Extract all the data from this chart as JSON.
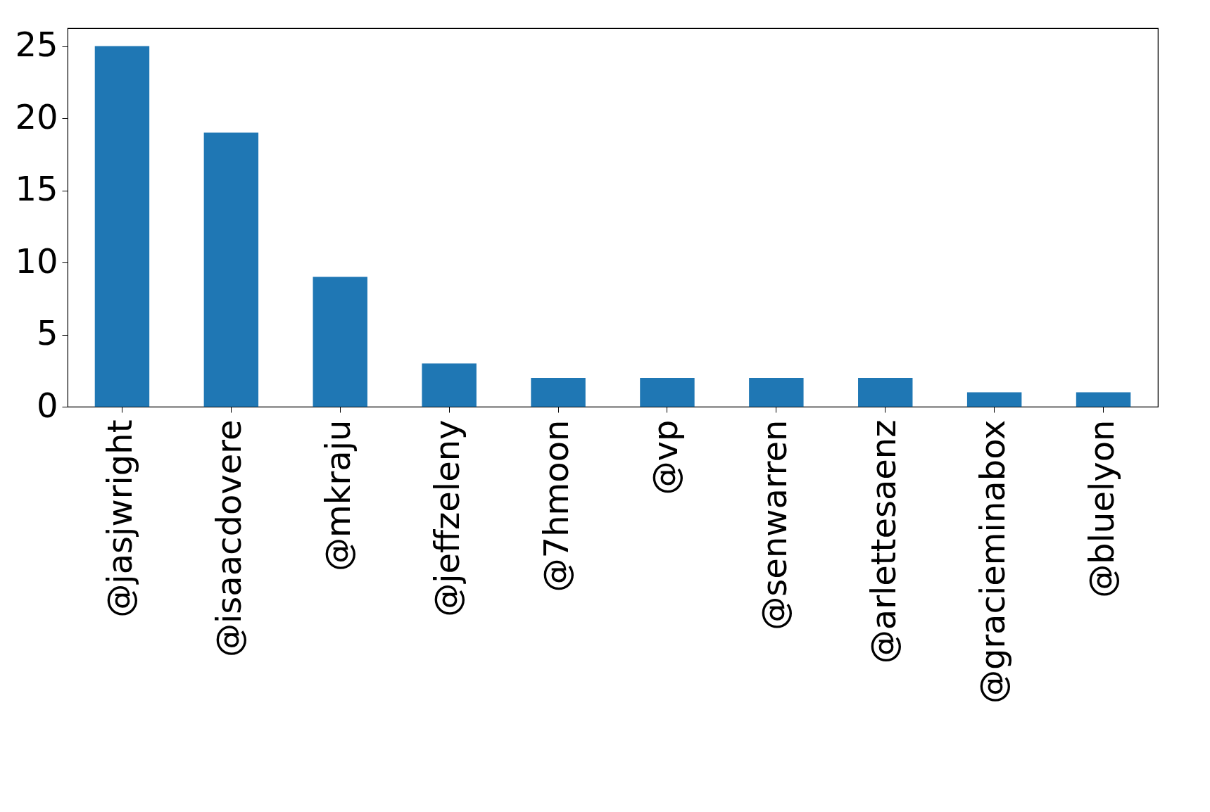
{
  "chart_data": {
    "type": "bar",
    "categories": [
      "@jasjwright",
      "@isaacdovere",
      "@mkraju",
      "@jeffzeleny",
      "@7hmoon",
      "@vp",
      "@senwarren",
      "@arlettesaenz",
      "@gracieminabox",
      "@bluelyon"
    ],
    "values": [
      25,
      19,
      9,
      3,
      2,
      2,
      2,
      2,
      1,
      1
    ],
    "color": "#1f77b4",
    "ylim": [
      0,
      26.25
    ],
    "yticks": [
      0,
      5,
      10,
      15,
      20,
      25
    ],
    "grid": false
  }
}
